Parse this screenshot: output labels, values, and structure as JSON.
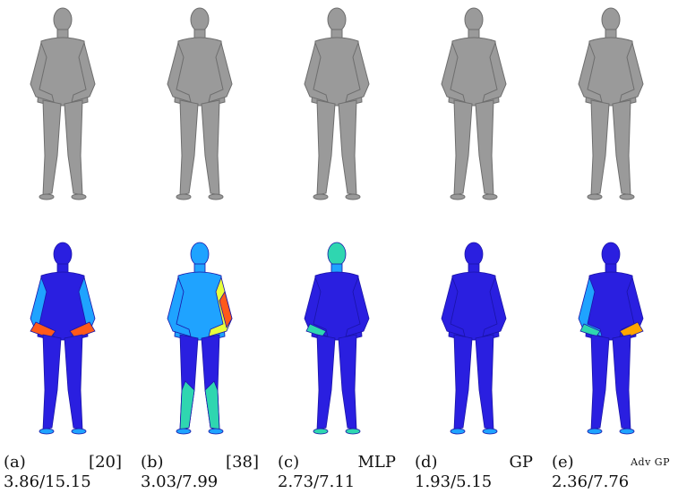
{
  "figure": {
    "panels": [
      {
        "label": "(a)",
        "method": "[20]",
        "errors": "3.86/15.15",
        "heat_level": 0.28,
        "hot_region": "hands"
      },
      {
        "label": "(b)",
        "method": "[38]",
        "errors": "3.03/7.99",
        "heat_level": 0.45,
        "hot_region": "arm"
      },
      {
        "label": "(c)",
        "method": "MLP",
        "errors": "2.73/7.11",
        "heat_level": 0.22,
        "hot_region": "head"
      },
      {
        "label": "(d)",
        "method": "GP",
        "errors": "1.93/5.15",
        "heat_level": 0.08,
        "hot_region": "none"
      },
      {
        "label": "(e)",
        "method": "Adv GP",
        "errors": "2.36/7.76",
        "heat_level": 0.14,
        "hot_region": "hand"
      }
    ],
    "colors": {
      "mesh_gray": "#9a9a9a",
      "mesh_dark": "#6e6e6e",
      "heat_base": "#2a1fe0",
      "heat_mid": "#1fa3ff",
      "heat_hot": "#ff5a1a",
      "heat_warm": "#e7ff3a"
    }
  }
}
